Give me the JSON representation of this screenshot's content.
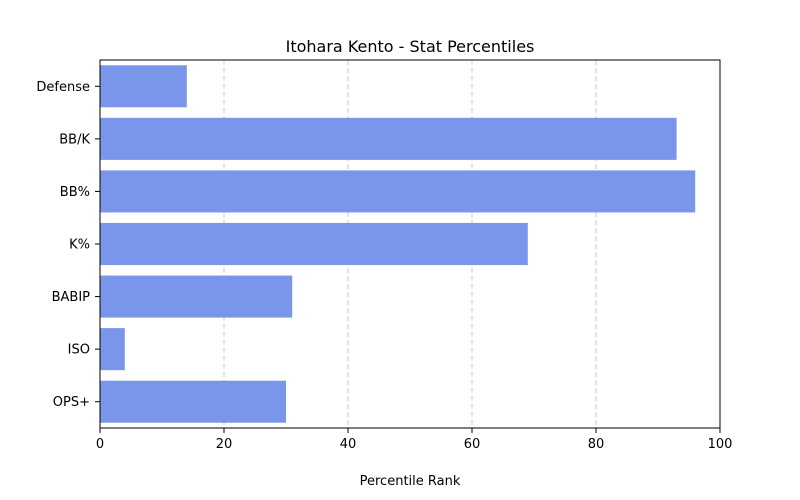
{
  "chart_data": {
    "type": "bar",
    "orientation": "horizontal",
    "title": "Itohara Kento - Stat Percentiles",
    "xlabel": "Percentile Rank",
    "ylabel": "",
    "categories": [
      "Defense",
      "BB/K",
      "BB%",
      "K%",
      "BABIP",
      "ISO",
      "OPS+"
    ],
    "values": [
      14,
      93,
      96,
      69,
      31,
      4,
      30
    ],
    "xlim": [
      0,
      100
    ],
    "xticks": [
      0,
      20,
      40,
      60,
      80,
      100
    ],
    "grid": "x-dashed",
    "bar_color": "#7996EA",
    "grid_color": "#c8c8c8"
  }
}
